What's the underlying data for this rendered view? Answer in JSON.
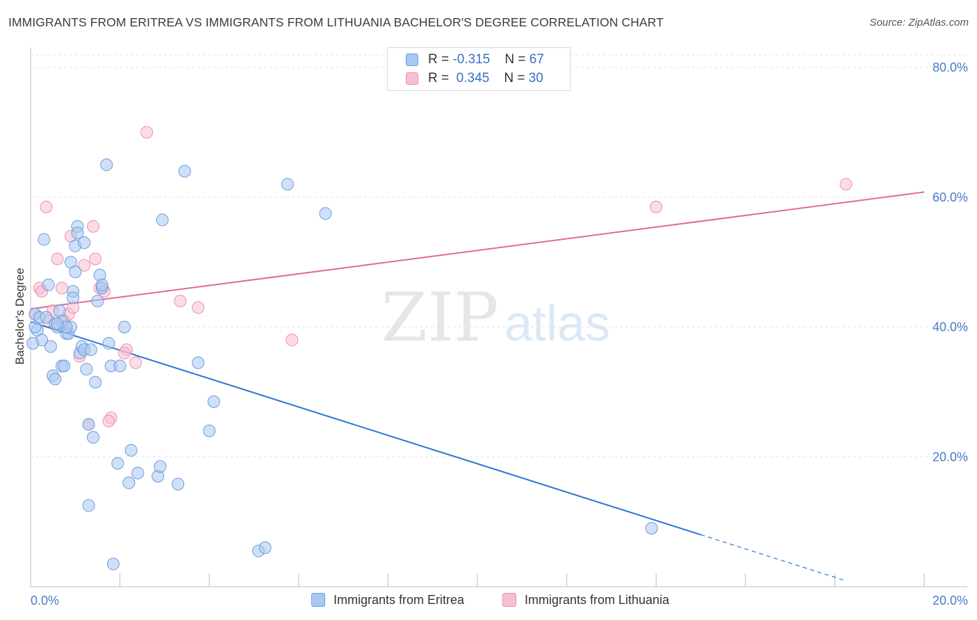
{
  "title": "IMMIGRANTS FROM ERITREA VS IMMIGRANTS FROM LITHUANIA BACHELOR'S DEGREE CORRELATION CHART",
  "source": "Source: ZipAtlas.com",
  "watermark": {
    "zip": "ZIP",
    "atlas": "atlas"
  },
  "legend": {
    "rows": [
      {
        "r_label": "R = ",
        "r_value": "-0.315",
        "n_label": "N = ",
        "n_value": "67"
      },
      {
        "r_label": "R = ",
        "r_value": " 0.345",
        "n_label": "N = ",
        "n_value": "30"
      }
    ]
  },
  "colors": {
    "eritrea_fill": "#a9c8f0",
    "eritrea_stroke": "#6a9be0",
    "eritrea_line": "#2e74d4",
    "lithuania_fill": "#f7bfd2",
    "lithuania_stroke": "#ec8fb0",
    "lithuania_line": "#e06a96"
  },
  "chart_data": {
    "type": "scatter",
    "title": "IMMIGRANTS FROM ERITREA VS IMMIGRANTS FROM LITHUANIA BACHELOR'S DEGREE CORRELATION CHART",
    "xlabel": "",
    "ylabel": "Bachelor's Degree",
    "xlim": [
      0,
      20
    ],
    "ylim": [
      0,
      80
    ],
    "x_tick_labels": [
      "0.0%",
      "20.0%"
    ],
    "y_ticks": [
      20,
      40,
      60,
      80
    ],
    "y_tick_labels": [
      "20.0%",
      "40.0%",
      "60.0%",
      "80.0%"
    ],
    "grid": true,
    "legend_position": "top-center",
    "series": [
      {
        "name": "Immigrants from Eritrea",
        "R": -0.315,
        "N": 67,
        "trend": {
          "x": [
            0,
            15.0
          ],
          "y": [
            40.8,
            8.0
          ],
          "dashed_to": [
            18.2,
            1.0
          ]
        },
        "points": [
          [
            0.1,
            42.0
          ],
          [
            0.2,
            41.5
          ],
          [
            0.15,
            39.5
          ],
          [
            0.25,
            38.0
          ],
          [
            0.3,
            53.5
          ],
          [
            0.4,
            46.5
          ],
          [
            0.5,
            32.5
          ],
          [
            0.55,
            32.0
          ],
          [
            0.6,
            40.0
          ],
          [
            0.7,
            41.0
          ],
          [
            0.65,
            42.5
          ],
          [
            0.7,
            34.0
          ],
          [
            0.75,
            34.0
          ],
          [
            0.8,
            39.0
          ],
          [
            0.85,
            39.0
          ],
          [
            0.9,
            40.0
          ],
          [
            0.9,
            50.0
          ],
          [
            0.95,
            45.5
          ],
          [
            0.95,
            44.5
          ],
          [
            1.0,
            52.5
          ],
          [
            1.05,
            55.5
          ],
          [
            1.05,
            54.5
          ],
          [
            1.1,
            36.0
          ],
          [
            1.15,
            37.0
          ],
          [
            1.2,
            36.5
          ],
          [
            1.2,
            53.0
          ],
          [
            1.25,
            33.5
          ],
          [
            1.3,
            25.0
          ],
          [
            1.3,
            12.5
          ],
          [
            1.35,
            36.5
          ],
          [
            1.4,
            23.0
          ],
          [
            1.45,
            31.5
          ],
          [
            1.5,
            44.0
          ],
          [
            1.55,
            48.0
          ],
          [
            1.6,
            46.0
          ],
          [
            1.7,
            65.0
          ],
          [
            1.75,
            37.5
          ],
          [
            1.8,
            34.0
          ],
          [
            1.85,
            3.5
          ],
          [
            1.95,
            19.0
          ],
          [
            2.0,
            34.0
          ],
          [
            2.1,
            40.0
          ],
          [
            2.2,
            16.0
          ],
          [
            2.25,
            21.0
          ],
          [
            2.4,
            17.5
          ],
          [
            2.85,
            17.0
          ],
          [
            2.9,
            18.5
          ],
          [
            2.95,
            56.5
          ],
          [
            3.3,
            15.8
          ],
          [
            3.45,
            64.0
          ],
          [
            3.75,
            34.5
          ],
          [
            4.0,
            24.0
          ],
          [
            4.1,
            28.5
          ],
          [
            5.1,
            5.5
          ],
          [
            5.25,
            6.0
          ],
          [
            5.75,
            62.0
          ],
          [
            6.6,
            57.5
          ],
          [
            13.9,
            9.0
          ],
          [
            0.05,
            37.5
          ],
          [
            0.1,
            40.0
          ],
          [
            0.45,
            37.0
          ],
          [
            0.35,
            41.5
          ],
          [
            0.55,
            40.5
          ],
          [
            0.8,
            40.0
          ],
          [
            1.6,
            46.5
          ],
          [
            1.0,
            48.5
          ],
          [
            0.6,
            40.5
          ]
        ]
      },
      {
        "name": "Immigrants from Lithuania",
        "R": 0.345,
        "N": 30,
        "trend": {
          "x": [
            0,
            20.0
          ],
          "y": [
            42.8,
            60.8
          ]
        },
        "points": [
          [
            0.1,
            42.0
          ],
          [
            0.2,
            46.0
          ],
          [
            0.25,
            45.5
          ],
          [
            0.35,
            58.5
          ],
          [
            0.4,
            41.0
          ],
          [
            0.6,
            50.5
          ],
          [
            0.7,
            46.0
          ],
          [
            0.75,
            41.0
          ],
          [
            0.85,
            42.0
          ],
          [
            0.9,
            54.0
          ],
          [
            0.95,
            43.0
          ],
          [
            1.1,
            35.5
          ],
          [
            1.2,
            49.5
          ],
          [
            1.3,
            25.0
          ],
          [
            1.4,
            55.5
          ],
          [
            1.45,
            50.5
          ],
          [
            1.55,
            46.0
          ],
          [
            1.65,
            45.5
          ],
          [
            1.8,
            26.0
          ],
          [
            1.75,
            25.5
          ],
          [
            2.15,
            36.5
          ],
          [
            2.1,
            36.0
          ],
          [
            2.35,
            34.5
          ],
          [
            2.6,
            70.0
          ],
          [
            3.35,
            44.0
          ],
          [
            3.75,
            43.0
          ],
          [
            5.85,
            38.0
          ],
          [
            14.0,
            58.5
          ],
          [
            18.25,
            62.0
          ],
          [
            0.5,
            42.5
          ]
        ]
      }
    ]
  },
  "bottom_legend": {
    "items": [
      {
        "label": "Immigrants from Eritrea"
      },
      {
        "label": "Immigrants from Lithuania"
      }
    ]
  }
}
